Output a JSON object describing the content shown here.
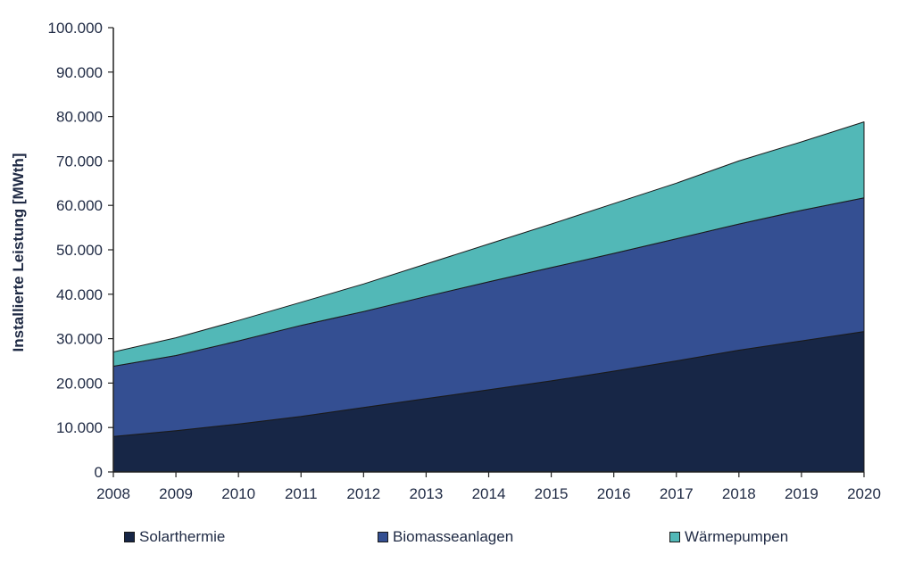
{
  "chart_data": {
    "type": "area",
    "stacked": true,
    "title": "",
    "xlabel": "",
    "ylabel": "Installierte Leistung [MWth]",
    "x": [
      "2008",
      "2009",
      "2010",
      "2011",
      "2012",
      "2013",
      "2014",
      "2015",
      "2016",
      "2017",
      "2018",
      "2019",
      "2020"
    ],
    "ylim": [
      0,
      100000
    ],
    "yticks": [
      "0",
      "10.000",
      "20.000",
      "30.000",
      "40.000",
      "50.000",
      "60.000",
      "70.000",
      "80.000",
      "90.000",
      "100.000"
    ],
    "ytick_values": [
      0,
      10000,
      20000,
      30000,
      40000,
      50000,
      60000,
      70000,
      80000,
      90000,
      100000
    ],
    "grid": false,
    "legend_position": "bottom",
    "series": [
      {
        "name": "Solarthermie",
        "color": "#172646",
        "values": [
          8000,
          9300,
          10800,
          12500,
          14500,
          16500,
          18500,
          20500,
          22700,
          25000,
          27400,
          29500,
          31600
        ]
      },
      {
        "name": "Biomasseanlagen",
        "color": "#344f92",
        "values": [
          15800,
          16900,
          18700,
          20500,
          21600,
          23000,
          24300,
          25500,
          26500,
          27500,
          28400,
          29400,
          30100
        ]
      },
      {
        "name": "Wärmepumpen",
        "color": "#52b8b7",
        "values": [
          3200,
          4000,
          4600,
          5200,
          6200,
          7300,
          8500,
          9800,
          11200,
          12500,
          14200,
          15400,
          17100
        ]
      }
    ]
  }
}
